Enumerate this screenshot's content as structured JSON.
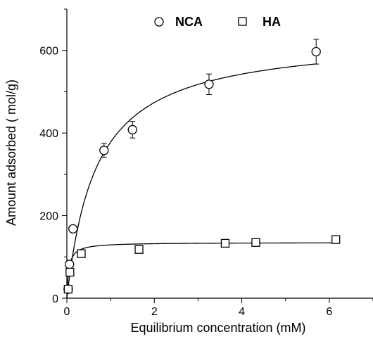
{
  "chart_data": {
    "type": "scatter",
    "xlabel": "Equilibrium concentration (mM)",
    "ylabel": "Amount adsorbed ( mol/g)",
    "xlim": [
      0,
      7
    ],
    "ylim": [
      0,
      700
    ],
    "xticks": [
      0,
      2,
      4,
      6
    ],
    "yticks": [
      0,
      200,
      400,
      600
    ],
    "legend_position": "top",
    "series": [
      {
        "name": "NCA",
        "marker": "circle",
        "points": [
          {
            "x": 0.03,
            "y": 22,
            "err": 0
          },
          {
            "x": 0.06,
            "y": 82,
            "err": 10
          },
          {
            "x": 0.14,
            "y": 168,
            "err": 0
          },
          {
            "x": 0.85,
            "y": 358,
            "err": 17
          },
          {
            "x": 1.5,
            "y": 408,
            "err": 20
          },
          {
            "x": 3.25,
            "y": 518,
            "err": 25
          },
          {
            "x": 5.7,
            "y": 597,
            "err": 30
          }
        ],
        "fit": {
          "model": "langmuir",
          "qmax": 635,
          "K": 1.47
        }
      },
      {
        "name": "HA",
        "marker": "square",
        "points": [
          {
            "x": 0.03,
            "y": 22,
            "err": 5
          },
          {
            "x": 0.07,
            "y": 63,
            "err": 8
          },
          {
            "x": 0.33,
            "y": 108,
            "err": 5
          },
          {
            "x": 1.65,
            "y": 118,
            "err": 6
          },
          {
            "x": 3.62,
            "y": 133,
            "err": 5
          },
          {
            "x": 4.32,
            "y": 135,
            "err": 5
          },
          {
            "x": 6.15,
            "y": 142,
            "err": 4
          }
        ],
        "fit": {
          "model": "langmuir",
          "qmax": 135,
          "K": 22
        }
      }
    ]
  }
}
